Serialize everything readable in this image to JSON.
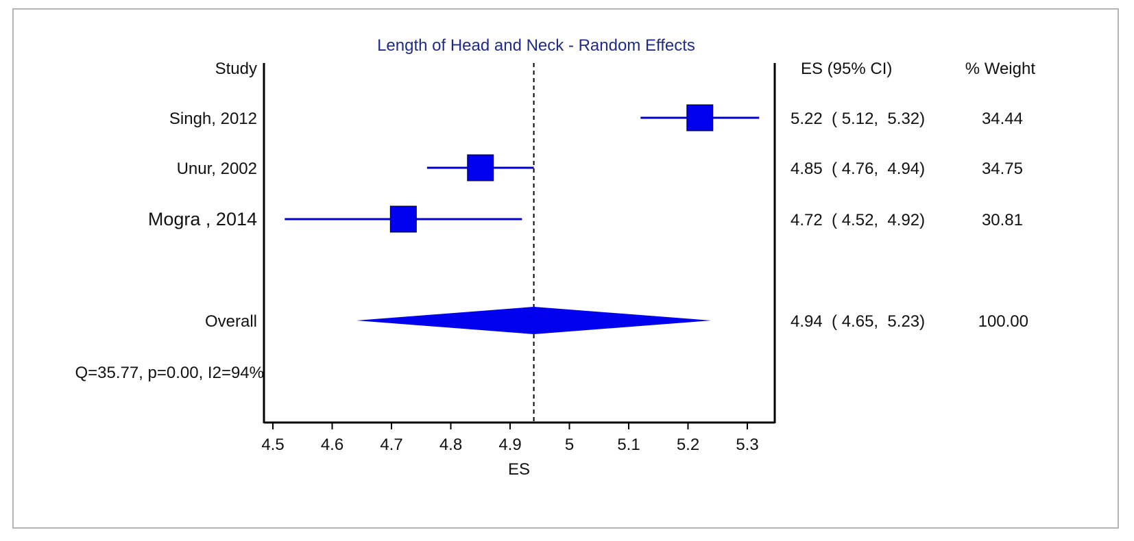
{
  "chart_data": {
    "type": "forest",
    "title": "Length of Head and Neck - Random Effects",
    "study_header": "Study",
    "es_header": "ES (95% CI)",
    "weight_header": "% Weight",
    "xlabel": "ES",
    "xlim": [
      4.5,
      5.35
    ],
    "xticks": [
      "4.5",
      "4.6",
      "4.7",
      "4.8",
      "4.9",
      "5",
      "5.1",
      "5.2",
      "5.3"
    ],
    "null_line": 4.94,
    "studies": [
      {
        "name": "Singh, 2012",
        "es": 5.22,
        "lower": 5.12,
        "upper": 5.32,
        "ci_text": "5.22  ( 5.12,  5.32)",
        "weight": "34.44"
      },
      {
        "name": "Unur, 2002",
        "es": 4.85,
        "lower": 4.76,
        "upper": 4.94,
        "ci_text": "4.85  ( 4.76,  4.94)",
        "weight": "34.75"
      },
      {
        "name": "Mogra , 2014",
        "es": 4.72,
        "lower": 4.52,
        "upper": 4.92,
        "ci_text": "4.72  ( 4.52,  4.92)",
        "weight": "30.81"
      }
    ],
    "overall": {
      "name": "Overall",
      "es": 4.94,
      "lower": 4.65,
      "upper": 5.23,
      "ci_text": "4.94  ( 4.65,  5.23)",
      "weight": "100.00"
    },
    "heterogeneity": "Q=35.77, p=0.00, I2=94%",
    "colors": {
      "marker": "#0000ee",
      "line": "#0000cc",
      "title": "#1f2b8c"
    }
  }
}
